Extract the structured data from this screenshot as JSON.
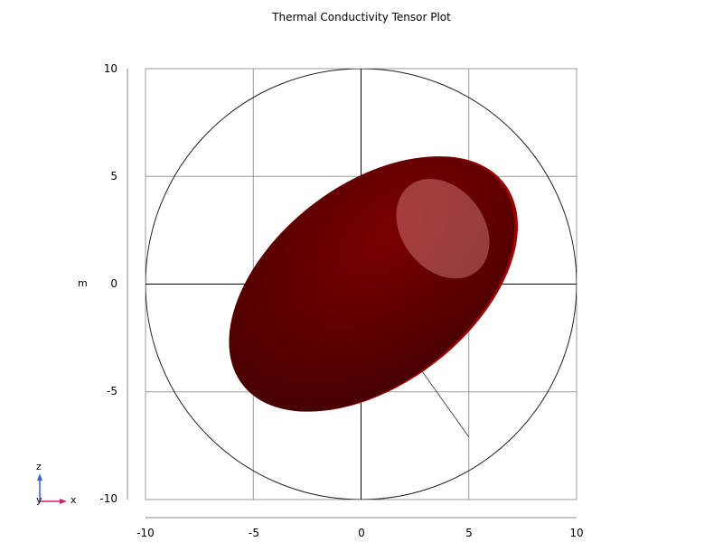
{
  "title": "Thermal Conductivity Tensor Plot",
  "ylabel": "m",
  "y_ticks": [
    "10",
    "5",
    "0",
    "-5",
    "-10"
  ],
  "x_ticks": [
    "-10",
    "-5",
    "0",
    "5",
    "10"
  ],
  "triad": {
    "z_label": "z",
    "y_label": "y",
    "x_label": "x"
  },
  "colors": {
    "ellipsoid_dark": "#4a0000",
    "ellipsoid_mid": "#6e0000",
    "ellipsoid_edge": "#a00000",
    "x_axis": "#cc2266",
    "z_axis": "#3366cc"
  },
  "chart_data": {
    "type": "diagram",
    "title": "Thermal Conductivity Tensor Plot",
    "ylabel": "m",
    "xlim": [
      -10,
      10
    ],
    "ylim": [
      -10,
      10
    ],
    "grid": true,
    "reference_circle_radius": 10,
    "ellipsoid": {
      "center": [
        0.5,
        0
      ],
      "semi_major": 7.6,
      "semi_minor": 4.6,
      "tilt_deg": 38
    }
  }
}
